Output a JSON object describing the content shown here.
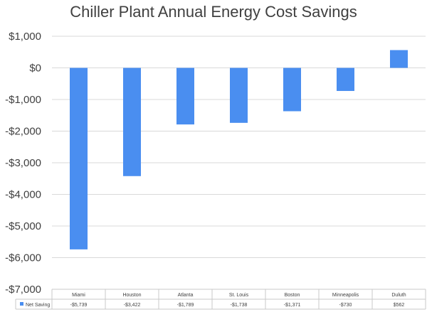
{
  "chart_data": {
    "type": "bar",
    "title": "Chiller Plant Annual Energy Cost Savings",
    "categories": [
      "Miami",
      "Houston",
      "Atlanta",
      "St. Louis",
      "Boston",
      "Minneapolis",
      "Duluth"
    ],
    "series": [
      {
        "name": "Net Saving",
        "values": [
          -5739,
          -3422,
          -1789,
          -1738,
          -1371,
          -730,
          562
        ],
        "labels": [
          "-$5,739",
          "-$3,422",
          "-$1,789",
          "-$1,738",
          "-$1,371",
          "-$730",
          "$562"
        ],
        "color": "#4a8ef0"
      }
    ],
    "ylim": [
      -7000,
      1000
    ],
    "yticks": [
      1000,
      0,
      -1000,
      -2000,
      -3000,
      -4000,
      -5000,
      -6000,
      -7000
    ],
    "ytick_labels": [
      "$1,000",
      "$0",
      "-$1,000",
      "-$2,000",
      "-$3,000",
      "-$4,000",
      "-$5,000",
      "-$6,000",
      "-$7,000"
    ],
    "grid": true,
    "legend": "data-table",
    "xlabel": "",
    "ylabel": ""
  }
}
